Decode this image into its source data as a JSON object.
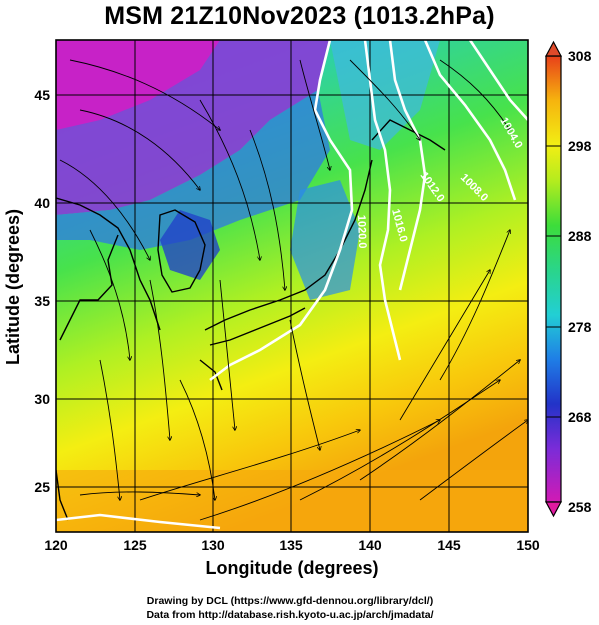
{
  "title": "MSM 21Z10Nov2023 (1013.2hPa)",
  "x_axis": {
    "label": "Longitude (degrees)",
    "ticks": [
      "120",
      "125",
      "130",
      "135",
      "140",
      "145",
      "150"
    ],
    "range": [
      120,
      150
    ]
  },
  "y_axis": {
    "label": "Latitude  (degrees)",
    "ticks": [
      "25",
      "30",
      "35",
      "40",
      "45"
    ],
    "range": [
      22.5,
      47.6
    ]
  },
  "colorbar": {
    "labels": [
      "308",
      "298",
      "288",
      "278",
      "268",
      "258"
    ],
    "range": [
      258,
      308
    ]
  },
  "contours": [
    {
      "label": "1020.0"
    },
    {
      "label": "1016.0"
    },
    {
      "label": "1012.0"
    },
    {
      "label": "1008.0"
    },
    {
      "label": "1004.0"
    }
  ],
  "credits": {
    "line1": "Drawing by DCL (https://www.gfd-dennou.org/library/dcl/)",
    "line2": "Data from http://database.rish.kyoto-u.ac.jp/arch/jmadata/"
  }
}
